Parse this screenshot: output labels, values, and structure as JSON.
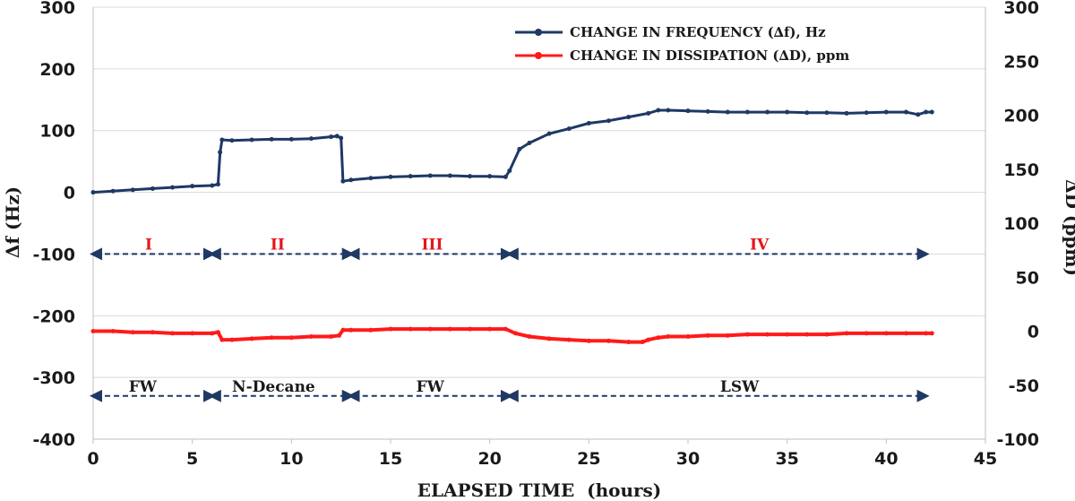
{
  "chart_data": {
    "type": "line",
    "xlabel": "ELAPSED TIME  (hours)",
    "ylabel": "Δf (Hz)",
    "y2label": "ΔD (ppm)",
    "xlim": [
      0,
      45
    ],
    "ylim": [
      -400,
      300
    ],
    "y2lim": [
      -100,
      300
    ],
    "xticks": [
      0,
      5,
      10,
      15,
      20,
      25,
      30,
      35,
      40,
      45
    ],
    "yticks": [
      300,
      200,
      100,
      0,
      -100,
      -200,
      -300,
      -400
    ],
    "y2ticks": [
      300,
      250,
      200,
      150,
      100,
      50,
      0,
      -50,
      -100
    ],
    "grid": "horizontal",
    "legend_position": "top-right",
    "colors": {
      "frequency": "#1f3864",
      "dissipation": "#ff1a1a",
      "phase": "#e8141b",
      "arrow": "#1f3864",
      "grid": "#d9d9d9"
    },
    "series": [
      {
        "name": "CHANGE IN FREQUENCY (∆f), Hz",
        "axis": "left",
        "x": [
          0,
          1,
          2,
          3,
          4,
          5,
          6,
          6.3,
          6.4,
          6.5,
          7,
          8,
          9,
          10,
          11,
          12,
          12.3,
          12.5,
          12.6,
          13,
          14,
          15,
          16,
          17,
          18,
          19,
          20,
          20.8,
          21,
          21.5,
          22,
          23,
          24,
          25,
          26,
          27,
          28,
          28.5,
          29,
          30,
          31,
          32,
          33,
          34,
          35,
          36,
          37,
          38,
          39,
          40,
          41,
          41.6,
          42,
          42.3
        ],
        "y": [
          0,
          2,
          4,
          6,
          8,
          10,
          11,
          13,
          65,
          85,
          84,
          85,
          86,
          86,
          87,
          90,
          91,
          88,
          18,
          20,
          23,
          25,
          26,
          27,
          27,
          26,
          26,
          25,
          35,
          70,
          80,
          95,
          103,
          112,
          116,
          122,
          128,
          133,
          133,
          132,
          131,
          130,
          130,
          130,
          130,
          129,
          129,
          128,
          129,
          130,
          130,
          126,
          130,
          130
        ]
      },
      {
        "name": "CHANGE IN DISSIPATION (∆D), ppm",
        "axis": "right",
        "x": [
          0,
          1,
          2,
          3,
          4,
          5,
          6,
          6.3,
          6.5,
          7,
          8,
          9,
          10,
          11,
          12,
          12.4,
          12.6,
          13,
          14,
          15,
          16,
          17,
          18,
          19,
          20,
          20.8,
          21.3,
          22,
          23,
          24,
          25,
          26,
          27,
          27.7,
          28,
          28.5,
          29,
          30,
          31,
          32,
          33,
          34,
          35,
          36,
          37,
          38,
          39,
          40,
          41,
          42,
          42.3
        ],
        "y": [
          0,
          0,
          -1,
          -1,
          -2,
          -2,
          -2,
          -1,
          -8,
          -8,
          -7,
          -6,
          -6,
          -5,
          -5,
          -4,
          1,
          1,
          1,
          2,
          2,
          2,
          2,
          2,
          2,
          2,
          -2,
          -5,
          -7,
          -8,
          -9,
          -9,
          -10,
          -10,
          -8,
          -6,
          -5,
          -5,
          -4,
          -4,
          -3,
          -3,
          -3,
          -3,
          -3,
          -2,
          -2,
          -2,
          -2,
          -2,
          -2
        ]
      }
    ],
    "annotations": {
      "phases": [
        {
          "label": "I",
          "x": 2.8,
          "start": 0,
          "end": 6
        },
        {
          "label": "II",
          "x": 9.3,
          "start": 6,
          "end": 13
        },
        {
          "label": "III",
          "x": 17.1,
          "start": 13,
          "end": 21
        },
        {
          "label": "IV",
          "x": 33.6,
          "start": 21,
          "end": 42
        }
      ],
      "phase_arrow_y": -100,
      "fluids": [
        {
          "label": "FW",
          "x": 2.5,
          "start": 0,
          "end": 6
        },
        {
          "label": "N-Decane",
          "x": 9.1,
          "start": 6,
          "end": 13
        },
        {
          "label": "FW",
          "x": 17.0,
          "start": 13,
          "end": 21
        },
        {
          "label": "LSW",
          "x": 32.6,
          "start": 21,
          "end": 42
        }
      ],
      "fluid_arrow_y": -330
    }
  }
}
